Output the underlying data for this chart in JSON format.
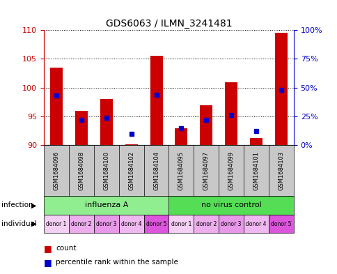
{
  "title": "GDS6063 / ILMN_3241481",
  "samples": [
    "GSM1684096",
    "GSM1684098",
    "GSM1684100",
    "GSM1684102",
    "GSM1684104",
    "GSM1684095",
    "GSM1684097",
    "GSM1684099",
    "GSM1684101",
    "GSM1684103"
  ],
  "count_values": [
    103.5,
    96.0,
    98.0,
    90.2,
    105.5,
    93.0,
    97.0,
    101.0,
    91.2,
    109.5
  ],
  "percentile_values": [
    43,
    22,
    24,
    10,
    44,
    15,
    22,
    26,
    12,
    48
  ],
  "ylim_left": [
    90,
    110
  ],
  "ylim_right": [
    0,
    100
  ],
  "yticks_left": [
    90,
    95,
    100,
    105,
    110
  ],
  "yticks_right": [
    0,
    25,
    50,
    75,
    100
  ],
  "ytick_labels_right": [
    "0%",
    "25%",
    "50%",
    "75%",
    "100%"
  ],
  "infection_groups": [
    {
      "label": "influenza A",
      "start": 0,
      "end": 5,
      "color": "#90EE90"
    },
    {
      "label": "no virus control",
      "start": 5,
      "end": 10,
      "color": "#55DD55"
    }
  ],
  "individual_labels": [
    "donor 1",
    "donor 2",
    "donor 3",
    "donor 4",
    "donor 5",
    "donor 1",
    "donor 2",
    "donor 3",
    "donor 4",
    "donor 5"
  ],
  "individual_colors": [
    "#F5D0F5",
    "#EDAEED",
    "#E898E8",
    "#F0B8F0",
    "#DD55DD",
    "#F5D0F5",
    "#EDAEED",
    "#E898E8",
    "#F0B8F0",
    "#DD55DD"
  ],
  "bar_color": "#CC0000",
  "dot_color": "#0000CC",
  "bar_bottom": 90,
  "bar_width": 0.5,
  "bg_color": "#FFFFFF",
  "plot_bg": "#FFFFFF",
  "left_label_color": "#CC0000",
  "right_label_color": "#0000CC"
}
